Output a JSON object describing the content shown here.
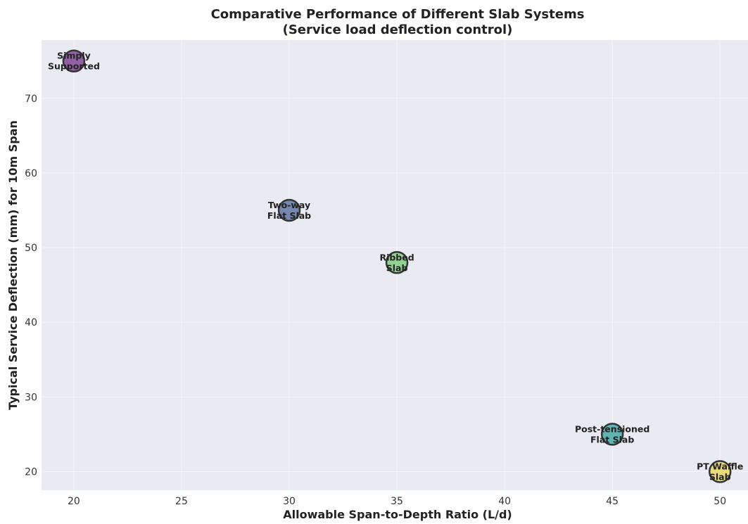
{
  "chart_data": {
    "type": "scatter",
    "title_line1": "Comparative Performance of Different Slab Systems",
    "title_line2": "(Service load deflection control)",
    "xlabel": "Allowable Span-to-Depth Ratio (L/d)",
    "ylabel": "Typical Service Deflection (mm) for 10m Span",
    "xlim": [
      18.5,
      51.3
    ],
    "ylim": [
      17.5,
      77.8
    ],
    "xticks": [
      20,
      25,
      30,
      35,
      40,
      45,
      50
    ],
    "yticks": [
      20,
      30,
      40,
      50,
      60,
      70
    ],
    "grid": true,
    "background": "#eaeaf2",
    "points": [
      {
        "x": 20,
        "y": 75,
        "label_lines": [
          "Simply",
          "Supported"
        ],
        "color": "#7b3f8f"
      },
      {
        "x": 30,
        "y": 55,
        "label_lines": [
          "Two-way",
          "Flat Slab"
        ],
        "color": "#5b6e9e"
      },
      {
        "x": 35,
        "y": 48,
        "label_lines": [
          "Ribbed",
          "Slab"
        ],
        "color": "#7ccb7c"
      },
      {
        "x": 45,
        "y": 25,
        "label_lines": [
          "Post-tensioned",
          "Flat Slab"
        ],
        "color": "#3fa6a2"
      },
      {
        "x": 50,
        "y": 20,
        "label_lines": [
          "PT Waffle",
          "Slab"
        ],
        "color": "#e8d75a"
      }
    ]
  }
}
